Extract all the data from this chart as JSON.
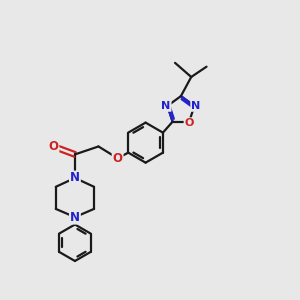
{
  "bg_color": "#e8e8e8",
  "bond_color": "#1a1a1a",
  "N_color": "#2222cc",
  "O_color": "#cc2222",
  "line_width": 1.6,
  "fig_size": [
    3.0,
    3.0
  ],
  "dpi": 100,
  "xlim": [
    0,
    10
  ],
  "ylim": [
    0,
    10
  ]
}
